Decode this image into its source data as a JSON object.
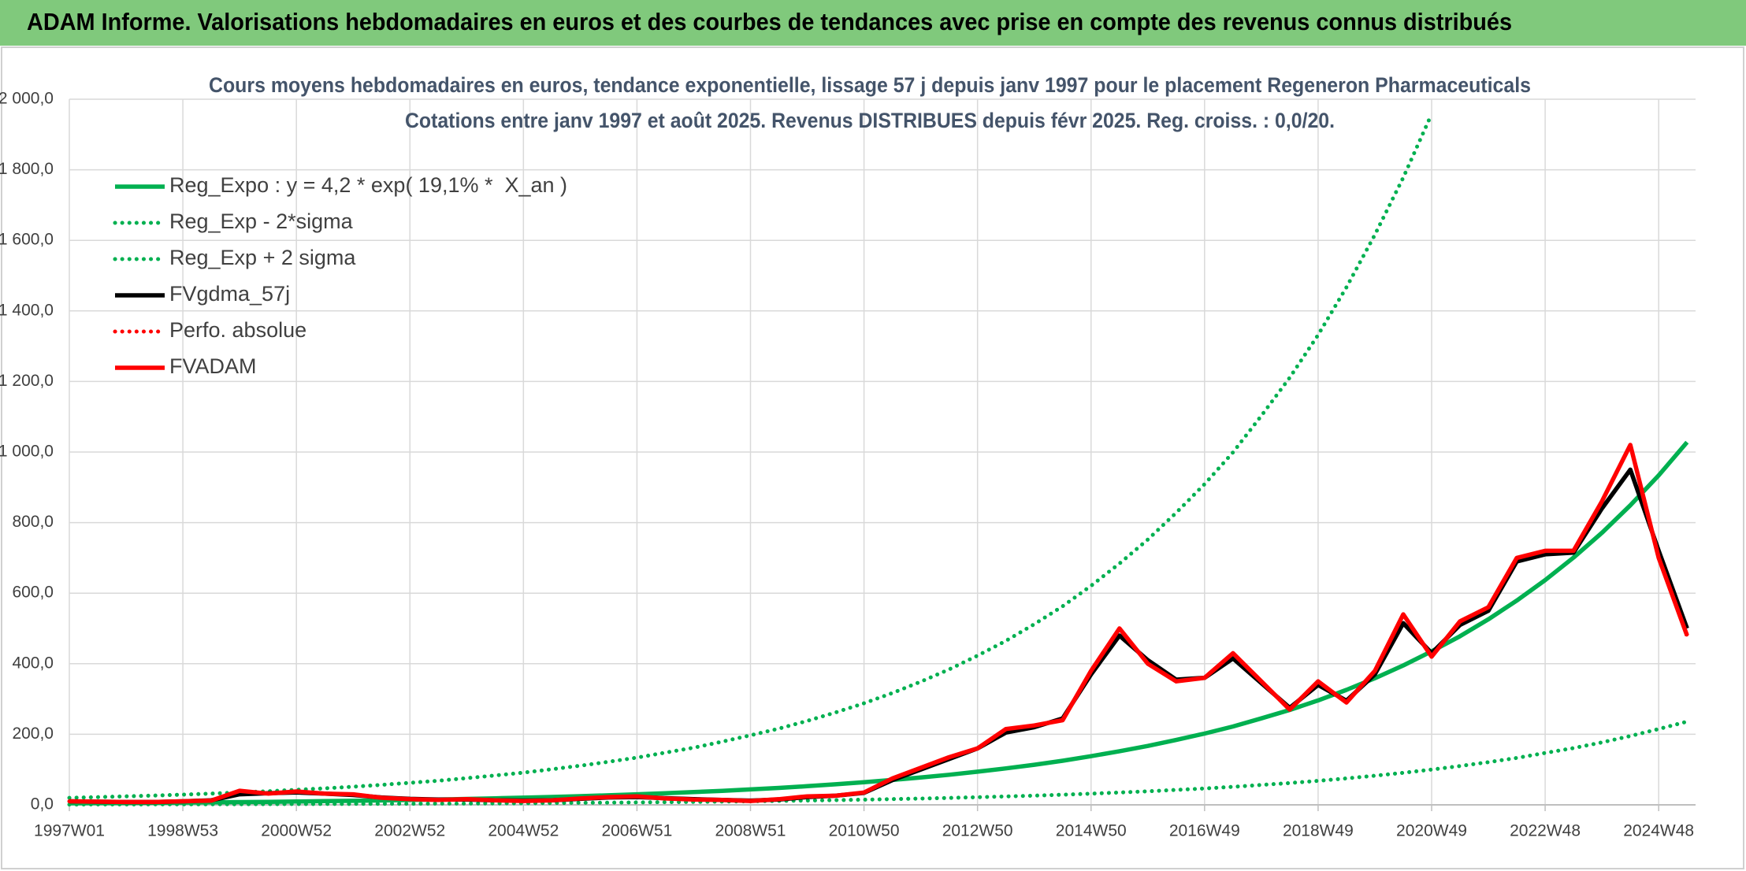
{
  "header": {
    "title": "ADAM Informe. Valorisations hebdomadaires en euros et des courbes de tendances avec prise en compte des revenus connus distribués"
  },
  "chart_data": {
    "type": "line",
    "title": "Cours moyens hebdomadaires en euros, tendance exponentielle, lissage 57 j depuis janv 1997 pour le placement Regeneron Pharmaceuticals",
    "subtitle": "Cotations entre janv 1997 et août 2025. Revenus DISTRIBUES depuis févr 2025. Reg. croiss. : 0,0/20.",
    "x": [
      1997,
      1997.5,
      1998,
      1998.5,
      1999,
      1999.5,
      2000,
      2000.5,
      2001,
      2001.5,
      2002,
      2002.5,
      2003,
      2003.5,
      2004,
      2004.5,
      2005,
      2005.5,
      2006,
      2006.5,
      2007,
      2007.5,
      2008,
      2008.5,
      2009,
      2009.5,
      2010,
      2010.5,
      2011,
      2011.5,
      2012,
      2012.5,
      2013,
      2013.5,
      2014,
      2014.5,
      2015,
      2015.5,
      2016,
      2016.5,
      2017,
      2017.5,
      2018,
      2018.5,
      2019,
      2019.5,
      2020,
      2020.5,
      2021,
      2021.5,
      2022,
      2022.5,
      2023,
      2023.5,
      2024,
      2024.5,
      2025,
      2025.5
    ],
    "xlim": [
      1997,
      2025.65
    ],
    "xticks": [
      {
        "value": 1997,
        "label": "1997W01"
      },
      {
        "value": 1999,
        "label": "1998W53"
      },
      {
        "value": 2001,
        "label": "2000W52"
      },
      {
        "value": 2003,
        "label": "2002W52"
      },
      {
        "value": 2005,
        "label": "2004W52"
      },
      {
        "value": 2007,
        "label": "2006W51"
      },
      {
        "value": 2009,
        "label": "2008W51"
      },
      {
        "value": 2011,
        "label": "2010W50"
      },
      {
        "value": 2013,
        "label": "2012W50"
      },
      {
        "value": 2015,
        "label": "2014W50"
      },
      {
        "value": 2017,
        "label": "2016W49"
      },
      {
        "value": 2019,
        "label": "2018W49"
      },
      {
        "value": 2021,
        "label": "2020W49"
      },
      {
        "value": 2023,
        "label": "2022W48"
      },
      {
        "value": 2025,
        "label": "2024W48"
      }
    ],
    "ylim": [
      0,
      2000
    ],
    "yticks": [
      {
        "value": 0,
        "label": "0,0"
      },
      {
        "value": 200,
        "label": "200,0"
      },
      {
        "value": 400,
        "label": "400,0"
      },
      {
        "value": 600,
        "label": "600,0"
      },
      {
        "value": 800,
        "label": "800,0"
      },
      {
        "value": 1000,
        "label": "1 000,0"
      },
      {
        "value": 1200,
        "label": "1 200,0"
      },
      {
        "value": 1400,
        "label": "1 400,0"
      },
      {
        "value": 1600,
        "label": "1 600,0"
      },
      {
        "value": 1800,
        "label": "1 800,0"
      },
      {
        "value": 2000,
        "label": "2 000,0"
      }
    ],
    "grid": true,
    "legend": "top-left",
    "series": [
      {
        "name": "Reg_Expo : y = 4,2 * exp( 19,1% *  X_an )",
        "color": "#00b050",
        "line_style": "solid",
        "values": [
          4.4,
          4.84,
          5.33,
          5.86,
          6.45,
          7.1,
          7.81,
          8.59,
          9.46,
          10.4,
          11.4,
          12.6,
          13.9,
          15.2,
          16.8,
          18.5,
          20.3,
          22.4,
          24.6,
          27.1,
          29.8,
          32.8,
          36.1,
          39.7,
          43.7,
          48.1,
          52.9,
          58.2,
          64,
          70.5,
          77.5,
          85.3,
          93.9,
          103.3,
          113.7,
          125,
          138,
          152,
          167,
          184,
          202,
          222,
          245,
          269,
          296,
          326,
          359,
          395,
          435,
          478,
          526,
          579,
          637,
          701,
          771,
          849,
          934,
          1028
        ]
      },
      {
        "name": "Reg_Exp - 2*sigma",
        "color": "#00b050",
        "line_style": "dotted",
        "values": [
          1.0,
          1.1,
          1.2,
          1.3,
          1.5,
          1.6,
          1.8,
          2.0,
          2.2,
          2.4,
          2.6,
          2.9,
          3.2,
          3.5,
          3.9,
          4.3,
          4.7,
          5.2,
          5.7,
          6.2,
          6.9,
          7.5,
          8.3,
          9.1,
          10.1,
          11.1,
          12.2,
          13.4,
          14.7,
          16.2,
          17.8,
          19.6,
          21.6,
          23.8,
          26.2,
          28.8,
          31.7,
          35,
          38.4,
          42.3,
          46.5,
          51.1,
          56.4,
          61.9,
          68.1,
          75,
          82.6,
          90.9,
          100,
          110,
          121,
          133,
          147,
          161,
          177,
          195,
          215,
          236
        ]
      },
      {
        "name": "Reg_Exp + 2 sigma",
        "color": "#00b050",
        "line_style": "dotted",
        "values": [
          19.8,
          21.8,
          24.0,
          26.4,
          29.0,
          32.0,
          35.1,
          38.7,
          42.6,
          46.8,
          51.3,
          56.7,
          62.6,
          68.4,
          75.6,
          83.3,
          91.4,
          101,
          111,
          122,
          134,
          148,
          162,
          179,
          197,
          216,
          238,
          262,
          288,
          317,
          349,
          384,
          423,
          465,
          512,
          563,
          621,
          684,
          752,
          828,
          909,
          999,
          1103,
          1211,
          1332,
          1467,
          1616,
          1778,
          1958,
          null,
          null,
          null,
          null,
          null,
          null,
          null,
          null,
          null
        ]
      },
      {
        "name": "FVgdma_57j",
        "color": "#000000",
        "line_style": "solid",
        "values": [
          10,
          9,
          8,
          8,
          10,
          13,
          30,
          33,
          35,
          32,
          28,
          21,
          17,
          15,
          15,
          13,
          12,
          13,
          17,
          21,
          22,
          19,
          16,
          14,
          12,
          15,
          22,
          26,
          34,
          70,
          100,
          130,
          160,
          205,
          220,
          245,
          370,
          480,
          410,
          355,
          360,
          415,
          345,
          275,
          340,
          295,
          370,
          515,
          430,
          510,
          550,
          690,
          710,
          715,
          840,
          950,
          720,
          500
        ]
      },
      {
        "name": "Perfo. absolue",
        "color": "#ff0000",
        "line_style": "dotted",
        "values": [
          10,
          9,
          8,
          8,
          10,
          12,
          40,
          32,
          38,
          32,
          30,
          20,
          16,
          14,
          16,
          13,
          11,
          13,
          18,
          22,
          24,
          18,
          15,
          14,
          11,
          16,
          24,
          26,
          35,
          75,
          105,
          135,
          160,
          215,
          225,
          240,
          380,
          500,
          400,
          350,
          360,
          430,
          350,
          270,
          350,
          290,
          380,
          540,
          420,
          520,
          560,
          700,
          720,
          720,
          860,
          1020,
          700,
          480
        ]
      },
      {
        "name": "FVADAM",
        "color": "#ff0000",
        "line_style": "solid",
        "values": [
          10,
          9,
          8,
          8,
          10,
          12,
          40,
          32,
          38,
          32,
          30,
          20,
          16,
          14,
          16,
          13,
          11,
          13,
          18,
          22,
          24,
          18,
          15,
          14,
          11,
          16,
          24,
          26,
          35,
          75,
          105,
          135,
          160,
          215,
          225,
          240,
          380,
          500,
          400,
          350,
          360,
          430,
          350,
          270,
          350,
          290,
          380,
          540,
          420,
          520,
          560,
          700,
          720,
          720,
          860,
          1020,
          700,
          480
        ]
      }
    ]
  }
}
